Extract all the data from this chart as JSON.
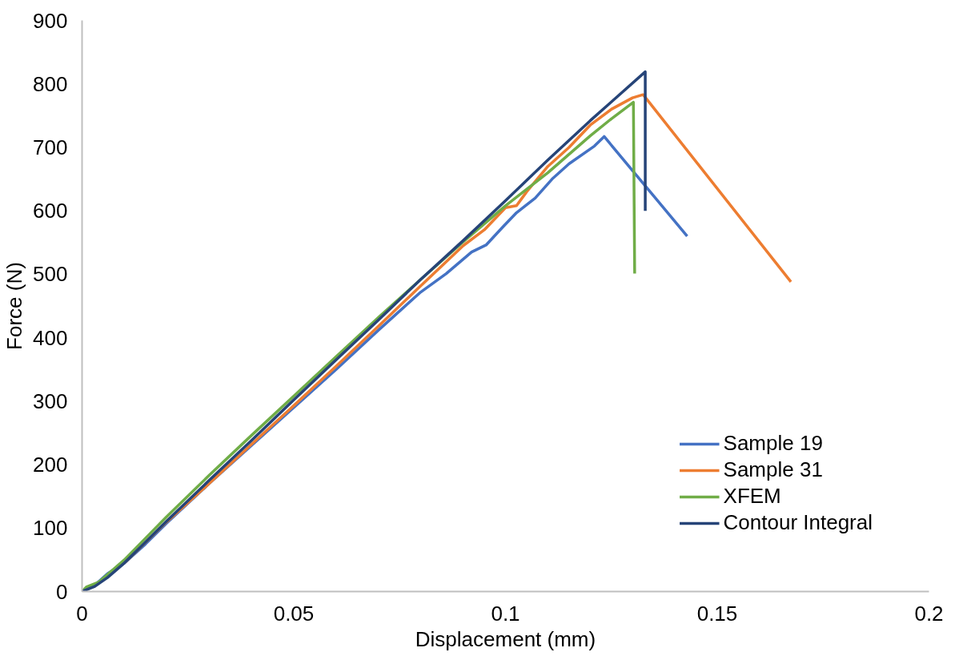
{
  "chart_data": {
    "type": "line",
    "xlabel": "Displacement (mm)",
    "ylabel": "Force (N)",
    "xlim": [
      0,
      0.2
    ],
    "xticks": [
      0,
      0.05,
      0.1,
      0.15,
      0.2
    ],
    "ylim": [
      0,
      900
    ],
    "yticks": [
      0,
      100,
      200,
      300,
      400,
      500,
      600,
      700,
      800,
      900
    ],
    "grid": false,
    "legend": "bottom right",
    "marker": "none",
    "line_style": "solid",
    "series": [
      {
        "name": "Sample 19",
        "color": "#4472c4",
        "x": [
          0,
          0.003,
          0.006,
          0.01,
          0.015,
          0.02,
          0.03,
          0.04,
          0.05,
          0.06,
          0.07,
          0.08,
          0.086,
          0.092,
          0.0954,
          0.0993,
          0.1026,
          0.107,
          0.111,
          0.115,
          0.121,
          0.1233,
          0.1429
        ],
        "values": [
          0,
          10,
          28,
          45,
          75,
          108,
          170,
          230,
          290,
          350,
          412,
          472,
          501,
          535,
          546,
          574,
          597,
          620,
          650,
          674,
          702,
          717,
          560
        ]
      },
      {
        "name": "Sample 31",
        "color": "#ed7d31",
        "x": [
          0.01,
          0.02,
          0.03,
          0.04,
          0.05,
          0.06,
          0.07,
          0.08,
          0.09,
          0.095,
          0.1,
          0.1026,
          0.105,
          0.11,
          0.115,
          0.12,
          0.125,
          0.13,
          0.1325,
          0.1674
        ],
        "values": [
          45,
          110,
          170,
          232,
          293,
          355,
          418,
          482,
          545,
          570,
          605,
          608,
          630,
          670,
          700,
          735,
          760,
          778,
          783,
          488
        ]
      },
      {
        "name": "XFEM",
        "color": "#70ad47",
        "x": [
          0,
          0.001,
          0.004,
          0.01,
          0.02,
          0.03,
          0.04,
          0.05,
          0.06,
          0.07,
          0.08,
          0.09,
          0.1,
          0.11,
          0.12,
          0.125,
          0.1302,
          0.1305
        ],
        "values": [
          0,
          7,
          15,
          50,
          118,
          183,
          246,
          308,
          370,
          432,
          492,
          551,
          608,
          660,
          718,
          745,
          771,
          501
        ]
      },
      {
        "name": "Contour Integral",
        "color": "#264478",
        "x": [
          0,
          0.003,
          0.006,
          0.01,
          0.015,
          0.02,
          0.03,
          0.04,
          0.05,
          0.06,
          0.07,
          0.08,
          0.09,
          0.1,
          0.11,
          0.12,
          0.133,
          0.133
        ],
        "values": [
          0,
          8,
          22,
          45,
          78,
          111,
          175,
          238,
          302,
          365,
          428,
          492,
          553,
          616,
          680,
          742,
          819,
          600
        ]
      }
    ]
  }
}
